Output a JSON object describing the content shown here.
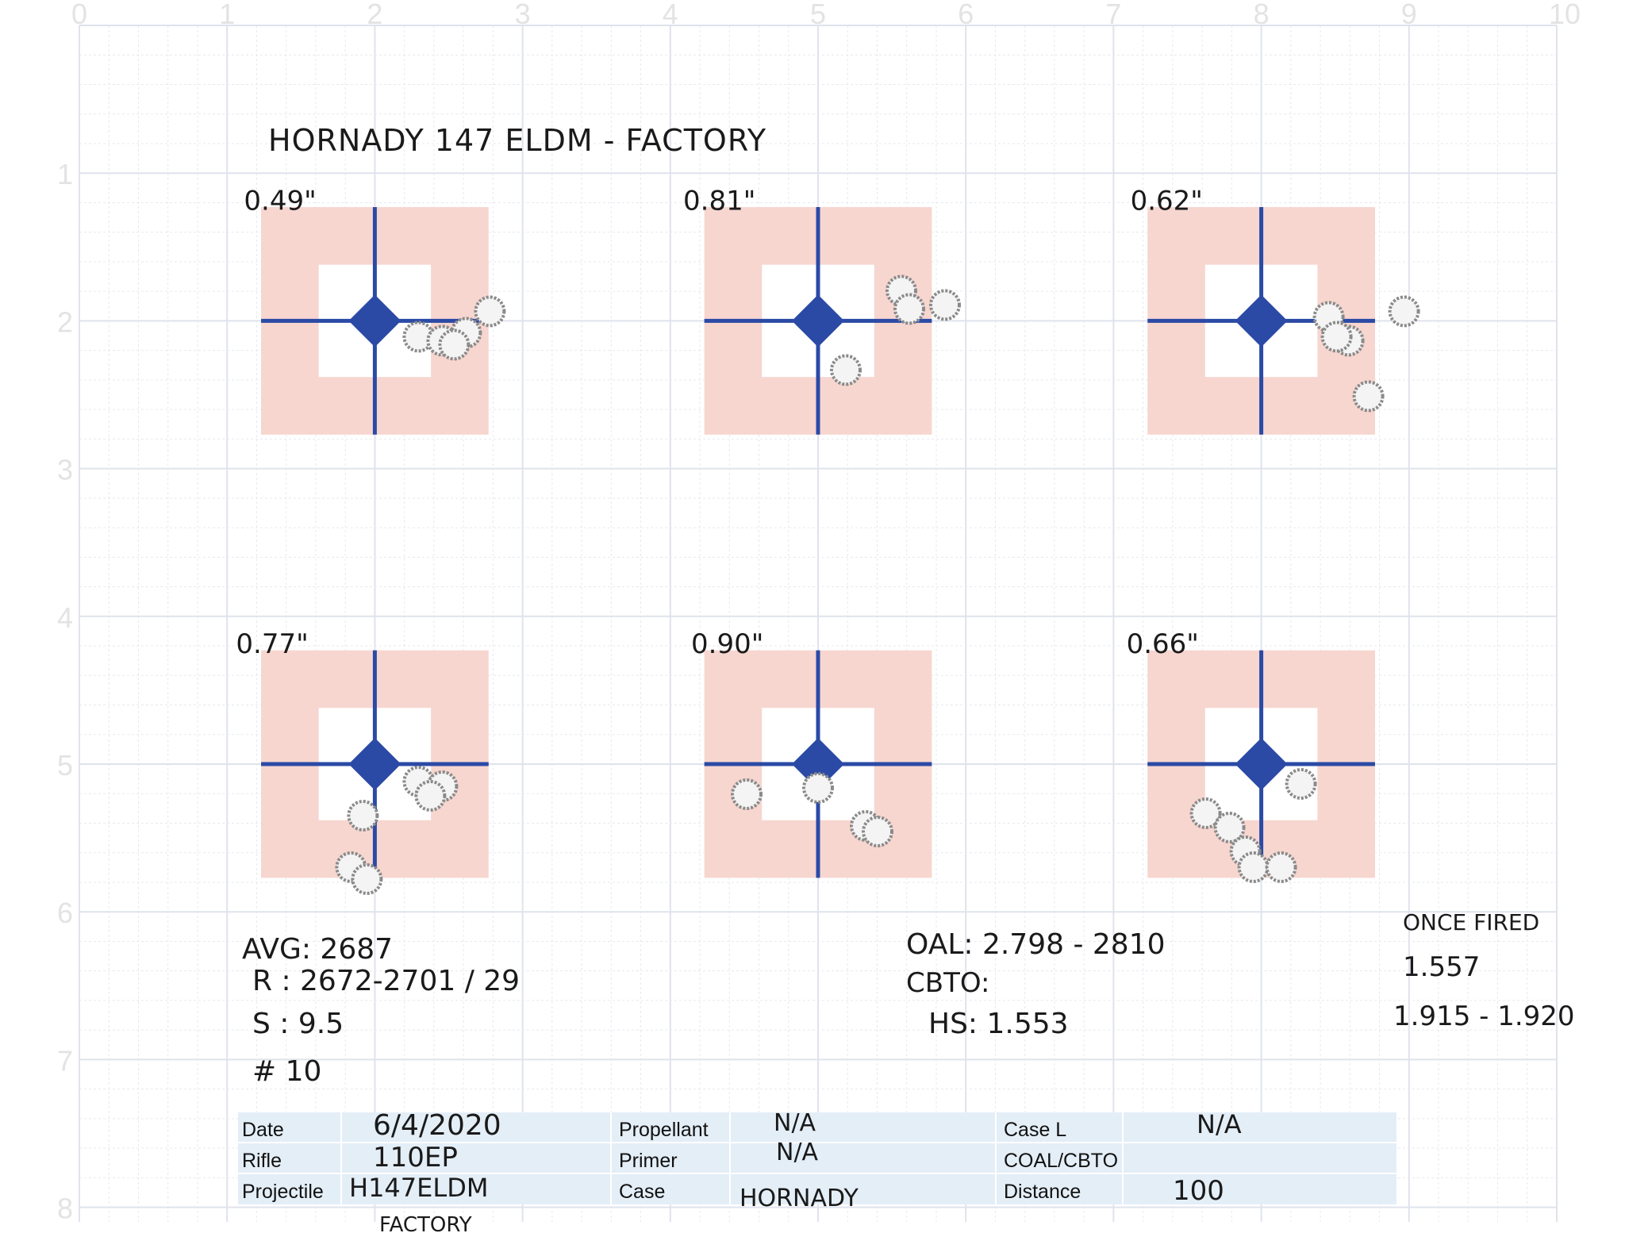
{
  "axes": {
    "x_ticks": [
      "0",
      "1",
      "2",
      "3",
      "4",
      "5",
      "6",
      "7",
      "8",
      "9",
      "10"
    ],
    "y_ticks": [
      "1",
      "2",
      "3",
      "4",
      "5",
      "6",
      "7",
      "8"
    ]
  },
  "colors": {
    "grid_major": "#dfe3ec",
    "grid_minor": "#e7e9ef",
    "target_fill": "#f7d6d0",
    "crosshair": "#2b4aa6",
    "table_fill": "#e4eef7"
  },
  "title": "HORNADY 147 ELDM - FACTORY",
  "targets": [
    {
      "group_size": "0.49\""
    },
    {
      "group_size": "0.81\""
    },
    {
      "group_size": "0.62\""
    },
    {
      "group_size": "0.77\""
    },
    {
      "group_size": "0.90\""
    },
    {
      "group_size": "0.66\""
    }
  ],
  "notes": {
    "velocity": {
      "avg": "AVG: 2687",
      "range": "R :  2672-2701 / 29",
      "sd": "S :  9.5",
      "count": "#  10"
    },
    "dims": {
      "oal": "OAL:  2.798 - 2810",
      "cbto": "CBTO:",
      "hs": "HS:  1.553"
    },
    "brass": {
      "line1": "ONCE FIRED",
      "line2": "1.557",
      "line3": "1.915 - 1.920"
    }
  },
  "form": {
    "date_label": "Date",
    "date_value": "6/4/2020",
    "rifle_label": "Rifle",
    "rifle_value": "110EP",
    "projectile_label": "Projectile",
    "projectile_value": "H147ELDM",
    "projectile_value_2": "FACTORY",
    "propellant_label": "Propellant",
    "propellant_value": "N/A",
    "primer_label": "Primer",
    "primer_value": "N/A",
    "case_label": "Case",
    "case_value": "HORNADY",
    "casel_label": "Case L",
    "casel_value": "N/A",
    "coal_label": "COAL/CBTO",
    "coal_value": "",
    "distance_label": "Distance",
    "distance_value": "100"
  }
}
